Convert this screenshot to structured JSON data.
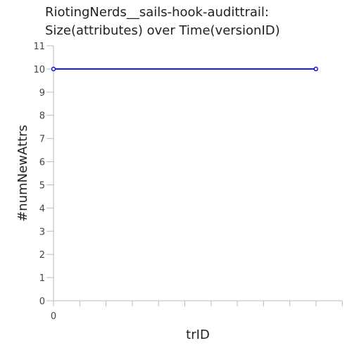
{
  "chart_data": {
    "type": "line",
    "title": "RiotingNerds__sails-hook-audittrail:\nSize(attributes) over Time(versionID)",
    "title_lines": [
      "RiotingNerds__sails-hook-audittrail:",
      "Size(attributes) over Time(versionID)"
    ],
    "xlabel": "trID",
    "ylabel": "#numNewAttrs",
    "x_tick_labels": [
      "0"
    ],
    "y_ticks": [
      0,
      1,
      2,
      3,
      4,
      5,
      6,
      7,
      8,
      9,
      10,
      11
    ],
    "ylim": [
      0,
      11
    ],
    "xlim": [
      0,
      1.1
    ],
    "grid": false,
    "series": [
      {
        "color": "#1515d0",
        "x": [
          0,
          1
        ],
        "y": [
          10,
          10
        ]
      }
    ]
  }
}
